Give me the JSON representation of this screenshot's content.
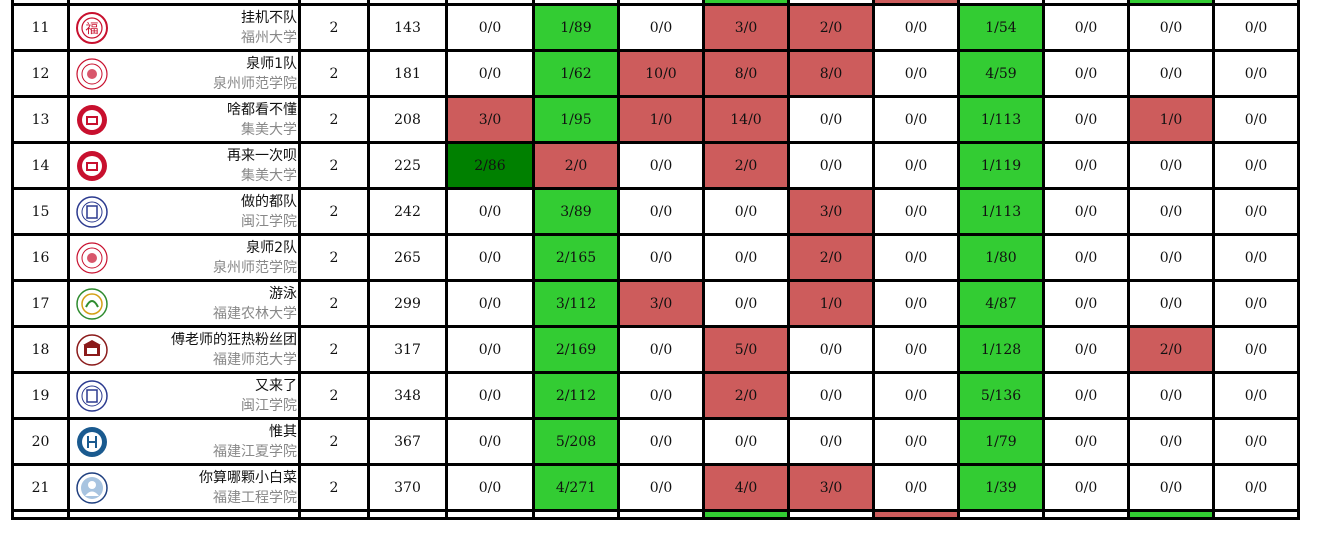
{
  "colors": {
    "accepted": "#33cc33",
    "first_blood": "#008000",
    "wrong": "#cd5c5c",
    "untried": "#ffffff"
  },
  "top_strip": [
    "",
    "",
    "",
    "",
    "",
    "",
    "",
    "ac",
    "",
    "wa",
    "",
    "",
    "ac",
    "",
    "",
    ""
  ],
  "rows": [
    {
      "rank": "11",
      "team": "挂机不队",
      "school": "福州大学",
      "logo": "fzu-logo",
      "solved": "2",
      "penalty": "143",
      "problems": [
        [
          "0/0",
          "none"
        ],
        [
          "1/89",
          "ac"
        ],
        [
          "0/0",
          "none"
        ],
        [
          "3/0",
          "wa"
        ],
        [
          "2/0",
          "wa"
        ],
        [
          "0/0",
          "none"
        ],
        [
          "1/54",
          "ac"
        ],
        [
          "0/0",
          "none"
        ],
        [
          "0/0",
          "none"
        ],
        [
          "0/0",
          "none"
        ]
      ]
    },
    {
      "rank": "12",
      "team": "泉师1队",
      "school": "泉州师范学院",
      "logo": "qztc-logo",
      "solved": "2",
      "penalty": "181",
      "problems": [
        [
          "0/0",
          "none"
        ],
        [
          "1/62",
          "ac"
        ],
        [
          "10/0",
          "wa"
        ],
        [
          "8/0",
          "wa"
        ],
        [
          "8/0",
          "wa"
        ],
        [
          "0/0",
          "none"
        ],
        [
          "4/59",
          "ac"
        ],
        [
          "0/0",
          "none"
        ],
        [
          "0/0",
          "none"
        ],
        [
          "0/0",
          "none"
        ]
      ]
    },
    {
      "rank": "13",
      "team": "啥都看不懂",
      "school": "集美大学",
      "logo": "jmu-logo",
      "solved": "2",
      "penalty": "208",
      "problems": [
        [
          "3/0",
          "wa"
        ],
        [
          "1/95",
          "ac"
        ],
        [
          "1/0",
          "wa"
        ],
        [
          "14/0",
          "wa"
        ],
        [
          "0/0",
          "none"
        ],
        [
          "0/0",
          "none"
        ],
        [
          "1/113",
          "ac"
        ],
        [
          "0/0",
          "none"
        ],
        [
          "1/0",
          "wa"
        ],
        [
          "0/0",
          "none"
        ]
      ]
    },
    {
      "rank": "14",
      "team": "再来一次呗",
      "school": "集美大学",
      "logo": "jmu-logo",
      "solved": "2",
      "penalty": "225",
      "problems": [
        [
          "2/86",
          "fb"
        ],
        [
          "2/0",
          "wa"
        ],
        [
          "0/0",
          "none"
        ],
        [
          "2/0",
          "wa"
        ],
        [
          "0/0",
          "none"
        ],
        [
          "0/0",
          "none"
        ],
        [
          "1/119",
          "ac"
        ],
        [
          "0/0",
          "none"
        ],
        [
          "0/0",
          "none"
        ],
        [
          "0/0",
          "none"
        ]
      ]
    },
    {
      "rank": "15",
      "team": "做的都队",
      "school": "闽江学院",
      "logo": "mju-logo",
      "solved": "2",
      "penalty": "242",
      "problems": [
        [
          "0/0",
          "none"
        ],
        [
          "3/89",
          "ac"
        ],
        [
          "0/0",
          "none"
        ],
        [
          "0/0",
          "none"
        ],
        [
          "3/0",
          "wa"
        ],
        [
          "0/0",
          "none"
        ],
        [
          "1/113",
          "ac"
        ],
        [
          "0/0",
          "none"
        ],
        [
          "0/0",
          "none"
        ],
        [
          "0/0",
          "none"
        ]
      ]
    },
    {
      "rank": "16",
      "team": "泉师2队",
      "school": "泉州师范学院",
      "logo": "qztc-logo",
      "solved": "2",
      "penalty": "265",
      "problems": [
        [
          "0/0",
          "none"
        ],
        [
          "2/165",
          "ac"
        ],
        [
          "0/0",
          "none"
        ],
        [
          "0/0",
          "none"
        ],
        [
          "2/0",
          "wa"
        ],
        [
          "0/0",
          "none"
        ],
        [
          "1/80",
          "ac"
        ],
        [
          "0/0",
          "none"
        ],
        [
          "0/0",
          "none"
        ],
        [
          "0/0",
          "none"
        ]
      ]
    },
    {
      "rank": "17",
      "team": "游泳",
      "school": "福建农林大学",
      "logo": "fafu-logo",
      "solved": "2",
      "penalty": "299",
      "problems": [
        [
          "0/0",
          "none"
        ],
        [
          "3/112",
          "ac"
        ],
        [
          "3/0",
          "wa"
        ],
        [
          "0/0",
          "none"
        ],
        [
          "1/0",
          "wa"
        ],
        [
          "0/0",
          "none"
        ],
        [
          "4/87",
          "ac"
        ],
        [
          "0/0",
          "none"
        ],
        [
          "0/0",
          "none"
        ],
        [
          "0/0",
          "none"
        ]
      ]
    },
    {
      "rank": "18",
      "team": "傅老师的狂热粉丝团",
      "school": "福建师范大学",
      "logo": "fjnu-logo",
      "solved": "2",
      "penalty": "317",
      "problems": [
        [
          "0/0",
          "none"
        ],
        [
          "2/169",
          "ac"
        ],
        [
          "0/0",
          "none"
        ],
        [
          "5/0",
          "wa"
        ],
        [
          "0/0",
          "none"
        ],
        [
          "0/0",
          "none"
        ],
        [
          "1/128",
          "ac"
        ],
        [
          "0/0",
          "none"
        ],
        [
          "2/0",
          "wa"
        ],
        [
          "0/0",
          "none"
        ]
      ]
    },
    {
      "rank": "19",
      "team": "又来了",
      "school": "闽江学院",
      "logo": "mju-logo",
      "solved": "2",
      "penalty": "348",
      "problems": [
        [
          "0/0",
          "none"
        ],
        [
          "2/112",
          "ac"
        ],
        [
          "0/0",
          "none"
        ],
        [
          "2/0",
          "wa"
        ],
        [
          "0/0",
          "none"
        ],
        [
          "0/0",
          "none"
        ],
        [
          "5/136",
          "ac"
        ],
        [
          "0/0",
          "none"
        ],
        [
          "0/0",
          "none"
        ],
        [
          "0/0",
          "none"
        ]
      ]
    },
    {
      "rank": "20",
      "team": "惟其",
      "school": "福建江夏学院",
      "logo": "fjjxu-logo",
      "solved": "2",
      "penalty": "367",
      "problems": [
        [
          "0/0",
          "none"
        ],
        [
          "5/208",
          "ac"
        ],
        [
          "0/0",
          "none"
        ],
        [
          "0/0",
          "none"
        ],
        [
          "0/0",
          "none"
        ],
        [
          "0/0",
          "none"
        ],
        [
          "1/79",
          "ac"
        ],
        [
          "0/0",
          "none"
        ],
        [
          "0/0",
          "none"
        ],
        [
          "0/0",
          "none"
        ]
      ]
    },
    {
      "rank": "21",
      "team": "你算哪颗小白菜",
      "school": "福建工程学院",
      "logo": "fjut-logo",
      "solved": "2",
      "penalty": "370",
      "problems": [
        [
          "0/0",
          "none"
        ],
        [
          "4/271",
          "ac"
        ],
        [
          "0/0",
          "none"
        ],
        [
          "4/0",
          "wa"
        ],
        [
          "3/0",
          "wa"
        ],
        [
          "0/0",
          "none"
        ],
        [
          "1/39",
          "ac"
        ],
        [
          "0/0",
          "none"
        ],
        [
          "0/0",
          "none"
        ],
        [
          "0/0",
          "none"
        ]
      ]
    }
  ],
  "bottom_strip": [
    "",
    "",
    "",
    "",
    "",
    "",
    "",
    "ac",
    "",
    "wa",
    "",
    "",
    "ac",
    "",
    "",
    ""
  ]
}
